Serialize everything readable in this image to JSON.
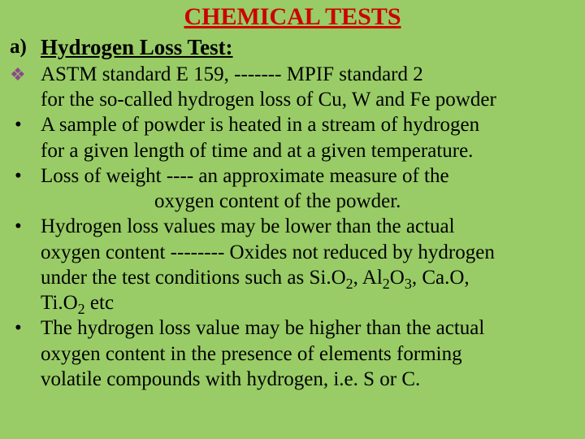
{
  "title": "CHEMICAL TESTS",
  "section": {
    "marker": "a)",
    "heading": "Hydrogen Loss Test:"
  },
  "items": [
    {
      "marker": "❖",
      "type": "diamond",
      "lines": [
        "ASTM standard E 159, -------  MPIF standard 2",
        "for the so-called hydrogen loss of Cu, W and Fe powder"
      ]
    },
    {
      "marker": "•",
      "type": "bullet",
      "lines": [
        "A sample of powder is heated in a stream of hydrogen",
        "for a given length of time and at a given temperature."
      ]
    },
    {
      "marker": "•",
      "type": "bullet",
      "lines": [
        "Loss of weight  ---- an approximate measure of the"
      ],
      "indent_line": "oxygen content of the powder."
    },
    {
      "marker": "•",
      "type": "bullet",
      "lines": [
        "Hydrogen loss values may be lower than the actual",
        "oxygen content -------- Oxides not reduced by hydrogen"
      ],
      "chem_line": {
        "prefix": "under the test conditions such as Si.O",
        "s1": "2",
        "mid1": ", Al",
        "s2": "2",
        "mid2": "O",
        "s3": "3",
        "mid3": ", Ca.O,"
      },
      "chem_line2": {
        "prefix": "Ti.O",
        "s1": "2",
        "suffix": " etc"
      }
    },
    {
      "marker": "•",
      "type": "bullet",
      "lines": [
        "The hydrogen loss value may be higher than the actual",
        "oxygen content in the presence of elements forming",
        "volatile compounds with hydrogen, i.e. S or C."
      ]
    }
  ],
  "colors": {
    "background": "#99cc66",
    "title": "#cc0000",
    "text": "#000000",
    "diamond": "#8b4a8b"
  },
  "font": {
    "family": "Times New Roman",
    "title_size": 30,
    "heading_size": 27,
    "body_size": 25
  }
}
